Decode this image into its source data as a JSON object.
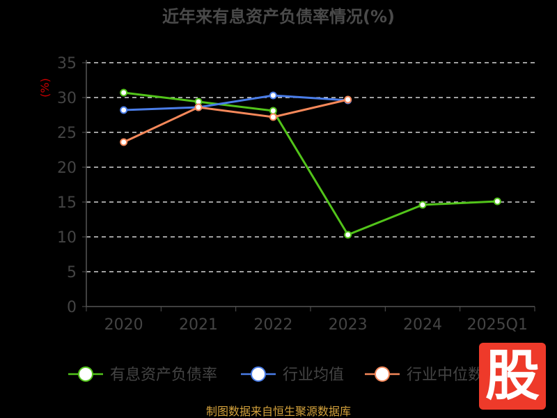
{
  "chart_data": {
    "type": "line",
    "title": "近年来有息资产负债率情况(%)",
    "ylabel": "(%)",
    "categories": [
      "2020",
      "2021",
      "2022",
      "2023",
      "2024",
      "2025Q1"
    ],
    "ylim": [
      0,
      35
    ],
    "yticks": [
      0,
      5,
      10,
      15,
      20,
      25,
      30,
      35
    ],
    "grid": true,
    "legend_position": "bottom",
    "series": [
      {
        "name": "有息资产负债率",
        "color": "#52c41a",
        "values": [
          30.7,
          29.4,
          28.1,
          10.3,
          14.6,
          15.1
        ]
      },
      {
        "name": "行业均值",
        "color": "#4a7de8",
        "values": [
          28.2,
          28.6,
          30.3,
          29.6,
          null,
          null
        ]
      },
      {
        "name": "行业中位数",
        "color": "#f5885a",
        "values": [
          23.6,
          28.6,
          27.2,
          29.7,
          null,
          null
        ]
      }
    ]
  },
  "colors": {
    "background": "#000000",
    "axis": "#555555",
    "grid": "#ffffff",
    "ylabel": "#cc0000",
    "source": "#d4a23c",
    "watermark": "#ee3a2a"
  },
  "source": "制图数据来自恒生聚源数据库",
  "watermark": {
    "text": "股",
    "logo": "stock-logo"
  }
}
